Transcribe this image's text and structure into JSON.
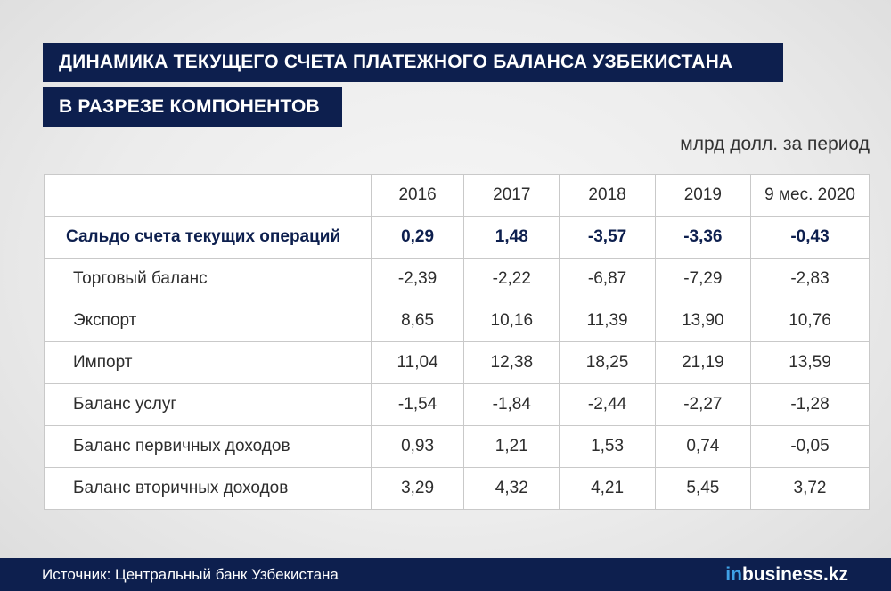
{
  "title_line1": "ДИНАМИКА ТЕКУЩЕГО СЧЕТА ПЛАТЕЖНОГО БАЛАНСА УЗБЕКИСТАНА",
  "title_line2": "В РАЗРЕЗЕ КОМПОНЕНТОВ",
  "unit": "млрд долл. за период",
  "footer": {
    "source": "Источник: Центральный банк Узбекистана",
    "logo_prefix": "in",
    "logo_suffix": "business.kz"
  },
  "colors": {
    "dark_blue": "#0d1f4e",
    "logo_accent": "#3fa1e6"
  },
  "chart_data": {
    "type": "table",
    "columns": [
      "2016",
      "2017",
      "2018",
      "2019",
      "9 мес. 2020"
    ],
    "rows": [
      {
        "label": "Сальдо счета текущих операций",
        "values": [
          "0,29",
          "1,48",
          "-3,57",
          "-3,36",
          "-0,43"
        ]
      },
      {
        "label": "Торговый баланс",
        "values": [
          "-2,39",
          "-2,22",
          "-6,87",
          "-7,29",
          "-2,83"
        ]
      },
      {
        "label": "Экспорт",
        "values": [
          "8,65",
          "10,16",
          "11,39",
          "13,90",
          "10,76"
        ]
      },
      {
        "label": "Импорт",
        "values": [
          "11,04",
          "12,38",
          "18,25",
          "21,19",
          "13,59"
        ]
      },
      {
        "label": "Баланс услуг",
        "values": [
          "-1,54",
          "-1,84",
          "-2,44",
          "-2,27",
          "-1,28"
        ]
      },
      {
        "label": "Баланс первичных доходов",
        "values": [
          "0,93",
          "1,21",
          "1,53",
          "0,74",
          "-0,05"
        ]
      },
      {
        "label": "Баланс вторичных доходов",
        "values": [
          "3,29",
          "4,32",
          "4,21",
          "5,45",
          "3,72"
        ]
      }
    ]
  }
}
